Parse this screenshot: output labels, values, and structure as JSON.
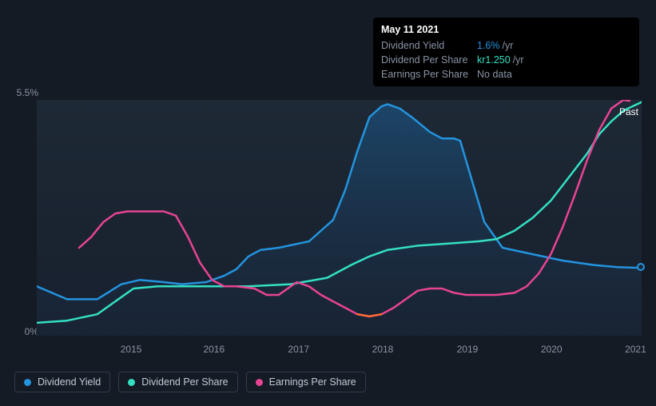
{
  "tooltip": {
    "date": "May 11 2021",
    "rows": [
      {
        "label": "Dividend Yield",
        "value": "1.6%",
        "suffix": "/yr",
        "color": "#2394df"
      },
      {
        "label": "Dividend Per Share",
        "value": "kr1.250",
        "suffix": "/yr",
        "color": "#33e0c2"
      },
      {
        "label": "Earnings Per Share",
        "value": "No data",
        "suffix": "",
        "color": "#8a94a6"
      }
    ]
  },
  "chart": {
    "type": "line",
    "background_color": "#151b24",
    "plot_bg": "#1e2936",
    "grid_color": "#2a3442",
    "text_color": "#8a94a6",
    "y_axis": {
      "min": 0,
      "max": 5.5,
      "ticks": [
        {
          "value": 0,
          "label": "0%"
        },
        {
          "value": 5.5,
          "label": "5.5%"
        }
      ]
    },
    "x_axis": {
      "labels": [
        "2015",
        "2016",
        "2017",
        "2018",
        "2019",
        "2020",
        "2021"
      ]
    },
    "past_label": "Past",
    "series": [
      {
        "name": "Dividend Yield",
        "color": "#2394df",
        "fill": true,
        "fill_colors": [
          "#1b4a72",
          "#1a2a40"
        ],
        "line_width": 2.5,
        "end_marker": true,
        "points": [
          [
            0.0,
            1.15
          ],
          [
            0.05,
            0.85
          ],
          [
            0.1,
            0.85
          ],
          [
            0.14,
            1.2
          ],
          [
            0.17,
            1.3
          ],
          [
            0.21,
            1.25
          ],
          [
            0.24,
            1.2
          ],
          [
            0.28,
            1.25
          ],
          [
            0.31,
            1.4
          ],
          [
            0.33,
            1.55
          ],
          [
            0.35,
            1.85
          ],
          [
            0.37,
            2.0
          ],
          [
            0.4,
            2.05
          ],
          [
            0.45,
            2.2
          ],
          [
            0.49,
            2.7
          ],
          [
            0.51,
            3.4
          ],
          [
            0.53,
            4.3
          ],
          [
            0.55,
            5.1
          ],
          [
            0.57,
            5.35
          ],
          [
            0.58,
            5.4
          ],
          [
            0.6,
            5.3
          ],
          [
            0.62,
            5.1
          ],
          [
            0.65,
            4.75
          ],
          [
            0.67,
            4.6
          ],
          [
            0.69,
            4.6
          ],
          [
            0.7,
            4.55
          ],
          [
            0.72,
            3.6
          ],
          [
            0.74,
            2.65
          ],
          [
            0.77,
            2.05
          ],
          [
            0.82,
            1.9
          ],
          [
            0.87,
            1.75
          ],
          [
            0.92,
            1.65
          ],
          [
            0.96,
            1.6
          ],
          [
            1.0,
            1.58
          ]
        ]
      },
      {
        "name": "Dividend Per Share",
        "color": "#33e0c2",
        "fill": false,
        "line_width": 2.5,
        "end_marker": false,
        "points": [
          [
            0.0,
            0.3
          ],
          [
            0.05,
            0.35
          ],
          [
            0.1,
            0.5
          ],
          [
            0.14,
            0.9
          ],
          [
            0.16,
            1.1
          ],
          [
            0.2,
            1.15
          ],
          [
            0.28,
            1.15
          ],
          [
            0.35,
            1.15
          ],
          [
            0.42,
            1.2
          ],
          [
            0.48,
            1.35
          ],
          [
            0.52,
            1.65
          ],
          [
            0.55,
            1.85
          ],
          [
            0.58,
            2.0
          ],
          [
            0.63,
            2.1
          ],
          [
            0.68,
            2.15
          ],
          [
            0.73,
            2.2
          ],
          [
            0.76,
            2.25
          ],
          [
            0.79,
            2.45
          ],
          [
            0.82,
            2.75
          ],
          [
            0.85,
            3.15
          ],
          [
            0.88,
            3.7
          ],
          [
            0.91,
            4.25
          ],
          [
            0.93,
            4.7
          ],
          [
            0.95,
            5.0
          ],
          [
            0.97,
            5.25
          ],
          [
            1.0,
            5.45
          ]
        ]
      },
      {
        "name": "Earnings Per Share",
        "color": "#e84393",
        "fill": false,
        "line_width": 2.5,
        "end_marker": false,
        "dip_color": "#ff6b35",
        "points": [
          [
            0.07,
            2.05
          ],
          [
            0.09,
            2.3
          ],
          [
            0.11,
            2.65
          ],
          [
            0.13,
            2.85
          ],
          [
            0.15,
            2.9
          ],
          [
            0.17,
            2.9
          ],
          [
            0.19,
            2.9
          ],
          [
            0.21,
            2.9
          ],
          [
            0.23,
            2.8
          ],
          [
            0.25,
            2.3
          ],
          [
            0.27,
            1.7
          ],
          [
            0.29,
            1.3
          ],
          [
            0.31,
            1.15
          ],
          [
            0.33,
            1.15
          ],
          [
            0.36,
            1.1
          ],
          [
            0.38,
            0.95
          ],
          [
            0.4,
            0.95
          ],
          [
            0.42,
            1.15
          ],
          [
            0.43,
            1.25
          ],
          [
            0.45,
            1.15
          ],
          [
            0.47,
            0.95
          ],
          [
            0.49,
            0.8
          ],
          [
            0.51,
            0.65
          ],
          [
            0.53,
            0.5
          ],
          [
            0.55,
            0.45
          ],
          [
            0.57,
            0.5
          ],
          [
            0.59,
            0.65
          ],
          [
            0.61,
            0.85
          ],
          [
            0.63,
            1.05
          ],
          [
            0.65,
            1.1
          ],
          [
            0.67,
            1.1
          ],
          [
            0.69,
            1.0
          ],
          [
            0.71,
            0.95
          ],
          [
            0.73,
            0.95
          ],
          [
            0.76,
            0.95
          ],
          [
            0.79,
            1.0
          ],
          [
            0.81,
            1.15
          ],
          [
            0.83,
            1.45
          ],
          [
            0.85,
            1.9
          ],
          [
            0.87,
            2.55
          ],
          [
            0.89,
            3.3
          ],
          [
            0.91,
            4.1
          ],
          [
            0.93,
            4.8
          ],
          [
            0.95,
            5.3
          ],
          [
            0.97,
            5.5
          ],
          [
            0.98,
            5.48
          ]
        ]
      }
    ],
    "legend": [
      {
        "label": "Dividend Yield",
        "color": "#2394df"
      },
      {
        "label": "Dividend Per Share",
        "color": "#33e0c2"
      },
      {
        "label": "Earnings Per Share",
        "color": "#e84393"
      }
    ]
  }
}
